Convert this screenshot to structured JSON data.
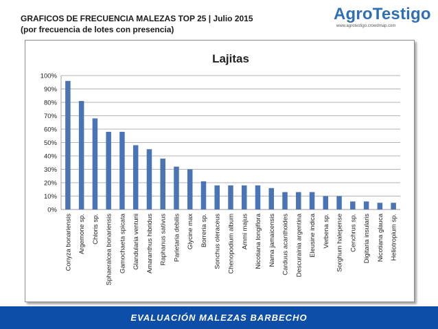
{
  "header": {
    "title": "GRAFICOS DE FRECUENCIA MALEZAS TOP 25 | Julio 2015",
    "subtitle": "(por frecuencia de lotes con presencia)"
  },
  "logo": {
    "name": "AgroTestigo",
    "url": "www.agrotestigo.crowdmap.com",
    "color": "#2f6fb5"
  },
  "footer": {
    "label": "EVALUACIÓN MALEZAS BARBECHO",
    "color": "#0d4ea8"
  },
  "chart_data": {
    "type": "bar",
    "title": "Lajitas",
    "xlabel": "",
    "ylabel": "",
    "ylim": [
      0,
      100
    ],
    "yticks": [
      "0%",
      "10%",
      "20%",
      "30%",
      "40%",
      "50%",
      "60%",
      "70%",
      "80%",
      "90%",
      "100%"
    ],
    "grid": true,
    "legend": "none",
    "bar_color": "#4a74b5",
    "categories": [
      "Conyza bonariensis",
      "Argemone sp.",
      "Chloris sp.",
      "Sphaeralcea bonariensis",
      "Gamochaeta spicata",
      "Glandularia venturii",
      "Amaranthus hibridus",
      "Raphanus sativus",
      "Parietaria debilis",
      "Glycine max",
      "Borreria sp.",
      "Sonchus oleraceus",
      "Chenopodium album",
      "Ammi majus",
      "Nicotiana longiflora",
      "Nama jamaicensis",
      "Carduus acanthoides",
      "Descurainia argentina",
      "Eleusine indica",
      "Verbena sp.",
      "Sorghum halepense",
      "Cenchrus sp.",
      "Digitaria insularis",
      "Nicotiana glauca",
      "Heliotropium sp."
    ],
    "values": [
      96,
      81,
      68,
      58,
      58,
      48,
      45,
      38,
      32,
      30,
      21,
      18,
      18,
      18,
      18,
      16,
      13,
      13,
      13,
      10,
      10,
      6,
      6,
      5,
      5
    ]
  }
}
